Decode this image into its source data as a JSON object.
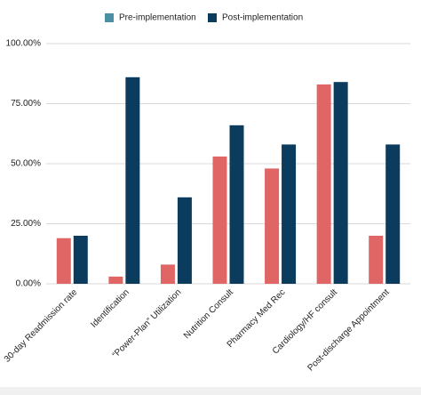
{
  "chart_data": {
    "type": "bar",
    "categories": [
      "30-day Readmission rate",
      "Identification",
      "“Power-Plan” Utilization",
      "Nutrition Consult",
      "Pharmacy Med Rec",
      "Cardiology/HF consult",
      "Post-discharge Appointment"
    ],
    "series": [
      {
        "name": "Pre-implementation",
        "color": "#e06666",
        "legend_color": "#4a8fa3",
        "values": [
          19,
          3,
          8,
          53,
          48,
          83,
          20
        ]
      },
      {
        "name": "Post-implementation",
        "color": "#0b3c5d",
        "legend_color": "#0b3c5d",
        "values": [
          20,
          86,
          36,
          66,
          58,
          84,
          58
        ]
      }
    ],
    "ylim": [
      0,
      100
    ],
    "yticks": [
      {
        "value": 0,
        "label": "0.00%"
      },
      {
        "value": 25,
        "label": "25.00%"
      },
      {
        "value": 50,
        "label": "50.00%"
      },
      {
        "value": 75,
        "label": "75.00%"
      },
      {
        "value": 100,
        "label": "100.00%"
      }
    ],
    "grid": true,
    "legend": "top"
  }
}
